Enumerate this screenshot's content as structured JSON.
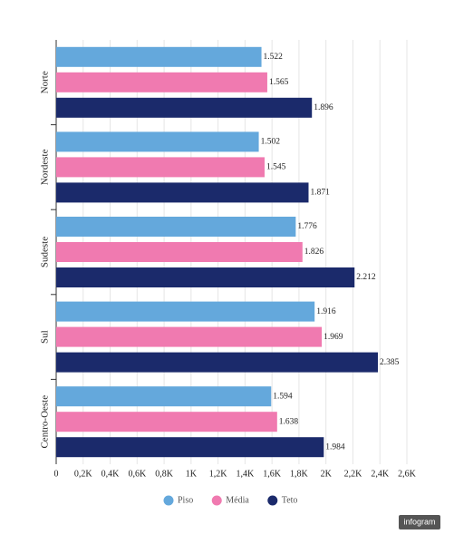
{
  "chart_data": {
    "type": "hbar",
    "categories": [
      "Norte",
      "Nordeste",
      "Sudeste",
      "Sul",
      "Centro-Oeste"
    ],
    "series": [
      {
        "name": "Piso",
        "color": "#64a8dc",
        "values": [
          1522,
          1502,
          1776,
          1916,
          1594
        ],
        "value_labels": [
          "1.522",
          "1.502",
          "1.776",
          "1.916",
          "1.594"
        ]
      },
      {
        "name": "Média",
        "color": "#f07ab0",
        "values": [
          1565,
          1545,
          1826,
          1969,
          1638
        ],
        "value_labels": [
          "1.565",
          "1.545",
          "1.826",
          "1.969",
          "1.638"
        ]
      },
      {
        "name": "Teto",
        "color": "#1b2a6b",
        "values": [
          1896,
          1871,
          2212,
          2385,
          1984
        ],
        "value_labels": [
          "1.896",
          "1.871",
          "2.212",
          "2.385",
          "1.984"
        ]
      }
    ],
    "xlim": [
      0,
      2600
    ],
    "xticks": [
      0,
      {
        "value": 200,
        "label": "0,2K"
      },
      {
        "value": 400,
        "label": "0,4K"
      },
      {
        "value": 600,
        "label": "0,6K"
      },
      {
        "value": 800,
        "label": "0,8K"
      },
      {
        "value": 1000,
        "label": "1K"
      },
      {
        "value": 1200,
        "label": "1,2K"
      },
      {
        "value": 1400,
        "label": "1,4K"
      },
      {
        "value": 1600,
        "label": "1,6K"
      },
      {
        "value": 1800,
        "label": "1,8K"
      },
      {
        "value": 2000,
        "label": "2K"
      },
      {
        "value": 2200,
        "label": "2,2K"
      },
      {
        "value": 2400,
        "label": "2,4K"
      },
      {
        "value": 2600,
        "label": "2,6K"
      }
    ],
    "grid": true,
    "legend": "bottom",
    "badge": "infogram"
  }
}
